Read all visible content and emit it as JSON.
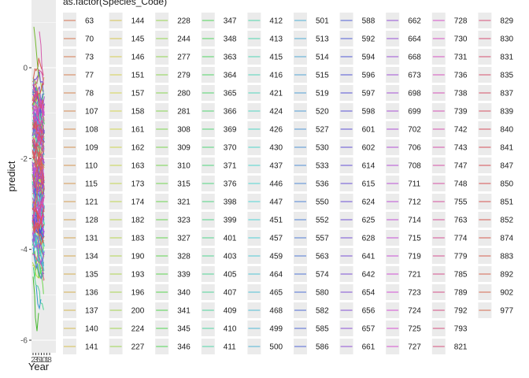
{
  "chart_data": {
    "type": "line",
    "xlabel": "Year",
    "ylabel": "predict",
    "x_tick_labels": [
      "2",
      "3",
      "5",
      "1",
      "0",
      "1",
      "8"
    ],
    "y_ticks": [
      0,
      -2,
      -4,
      -6
    ],
    "y_tick_labels": [
      "0",
      "-2",
      "-4",
      "-6"
    ],
    "ylim": [
      -6,
      1
    ],
    "grid": true,
    "legend_placement": "right",
    "legend_title": "as.factor(Species_Code)",
    "series_names": [
      "63",
      "70",
      "73",
      "77",
      "78",
      "107",
      "108",
      "109",
      "110",
      "115",
      "121",
      "128",
      "131",
      "134",
      "135",
      "136",
      "137",
      "140",
      "141",
      "144",
      "145",
      "146",
      "151",
      "157",
      "158",
      "161",
      "162",
      "163",
      "173",
      "174",
      "182",
      "183",
      "190",
      "193",
      "196",
      "200",
      "224",
      "227",
      "228",
      "244",
      "277",
      "279",
      "280",
      "281",
      "308",
      "309",
      "310",
      "315",
      "321",
      "323",
      "327",
      "328",
      "339",
      "340",
      "341",
      "345",
      "346",
      "347",
      "348",
      "363",
      "364",
      "365",
      "366",
      "369",
      "370",
      "371",
      "376",
      "398",
      "399",
      "401",
      "403",
      "405",
      "407",
      "409",
      "410",
      "411",
      "412",
      "413",
      "415",
      "416",
      "421",
      "424",
      "426",
      "430",
      "437",
      "446",
      "447",
      "451",
      "457",
      "459",
      "464",
      "465",
      "468",
      "499",
      "500",
      "501",
      "513",
      "514",
      "515",
      "519",
      "520",
      "527",
      "530",
      "533",
      "536",
      "550",
      "552",
      "557",
      "563",
      "574",
      "580",
      "582",
      "585",
      "586",
      "588",
      "592",
      "594",
      "596",
      "597",
      "598",
      "601",
      "602",
      "614",
      "615",
      "624",
      "625",
      "628",
      "641",
      "642",
      "654",
      "656",
      "657",
      "661",
      "662",
      "664",
      "668",
      "673",
      "698",
      "699",
      "702",
      "706",
      "708",
      "711",
      "712",
      "714",
      "715",
      "719",
      "721",
      "723",
      "724",
      "725",
      "727",
      "728",
      "730",
      "731",
      "736",
      "738",
      "739",
      "742",
      "743",
      "747",
      "748",
      "755",
      "763",
      "774",
      "779",
      "785",
      "789",
      "792",
      "793",
      "821",
      "829",
      "830",
      "831",
      "835",
      "837",
      "839",
      "840",
      "841",
      "847",
      "850",
      "851",
      "852",
      "874",
      "883",
      "892",
      "902",
      "977"
    ]
  }
}
